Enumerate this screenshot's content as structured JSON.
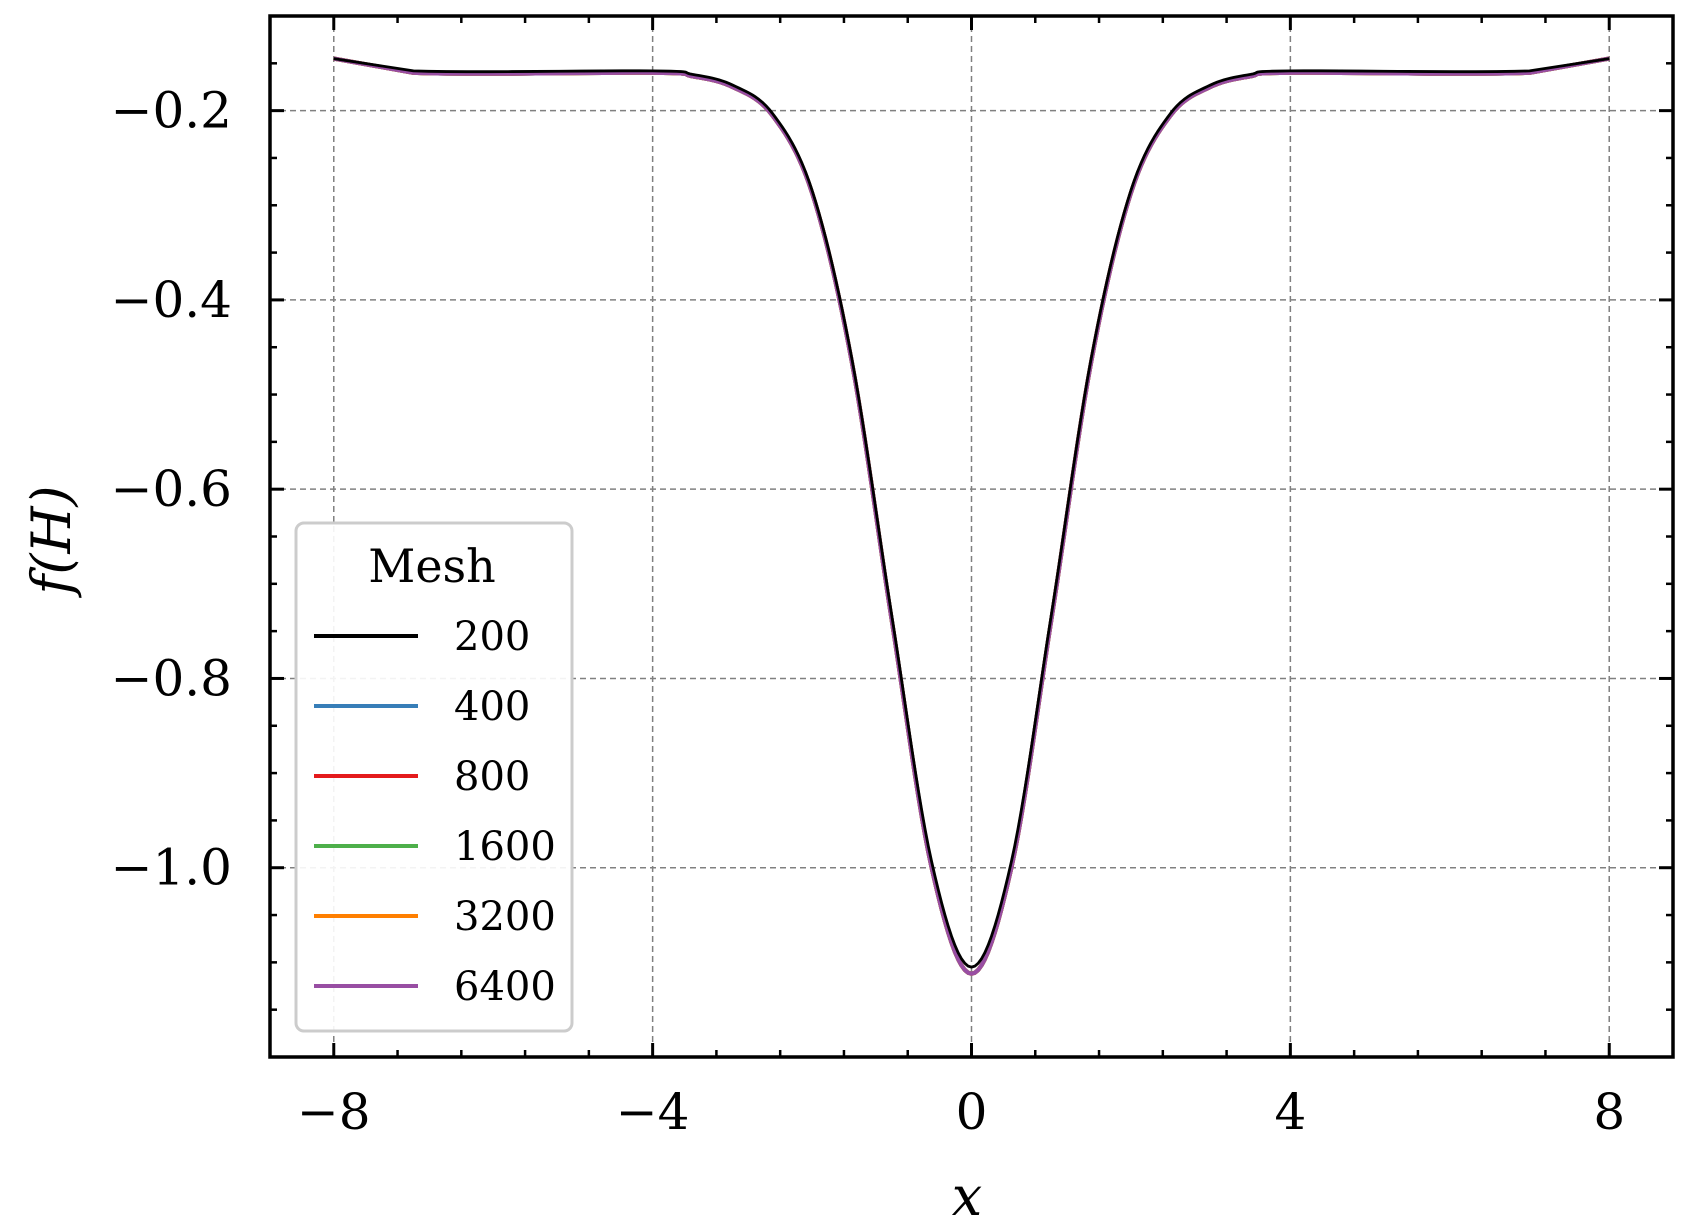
{
  "chart_data": {
    "type": "line",
    "xlabel": "x",
    "ylabel": "f(H)",
    "xlim": [
      -8.8,
      8.8
    ],
    "ylim": [
      -1.2,
      -0.1
    ],
    "xticks": [
      -8,
      -4,
      0,
      4,
      8
    ],
    "xtick_labels": [
      "−8",
      "−4",
      "0",
      "4",
      "8"
    ],
    "yticks": [
      -0.2,
      -0.4,
      -0.6,
      -0.8,
      -1.0
    ],
    "ytick_labels": [
      "−0.2",
      "−0.4",
      "−0.6",
      "−0.8",
      "−1.0"
    ],
    "grid": true,
    "legend": {
      "title": "Mesh",
      "placement": "lower-left"
    },
    "series": [
      {
        "name": "200",
        "color": "#000000",
        "min": -1.105,
        "edge": -0.145,
        "plateau": -0.158
      },
      {
        "name": "400",
        "color": "#377eb8",
        "min": -1.112,
        "edge": -0.145,
        "plateau": -0.16
      },
      {
        "name": "800",
        "color": "#e41a1c",
        "min": -1.112,
        "edge": -0.145,
        "plateau": -0.16
      },
      {
        "name": "1600",
        "color": "#4daf4a",
        "min": -1.112,
        "edge": -0.145,
        "plateau": -0.16
      },
      {
        "name": "3200",
        "color": "#ff7f00",
        "min": -1.112,
        "edge": -0.145,
        "plateau": -0.16
      },
      {
        "name": "6400",
        "color": "#984ea3",
        "min": -1.112,
        "edge": -0.145,
        "plateau": -0.16
      }
    ],
    "shape_points": {
      "x": [
        -8,
        -7,
        -4,
        -3.5,
        -3,
        -2.5,
        -2,
        -1.5,
        -1,
        -0.5,
        0,
        0.5,
        1,
        1.5,
        2,
        2.5,
        3,
        3.5,
        4,
        7,
        8
      ],
      "relative_depth": [
        0,
        1,
        1,
        1.01,
        1.04,
        1.12,
        1.34,
        1.82,
        2.55,
        3.25,
        3.55,
        3.25,
        2.55,
        1.82,
        1.34,
        1.12,
        1.04,
        1.01,
        1,
        1,
        0
      ]
    }
  }
}
